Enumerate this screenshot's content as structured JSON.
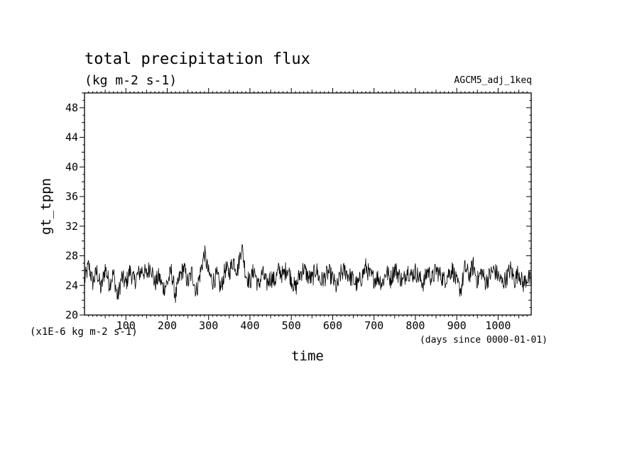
{
  "chart_data": {
    "type": "line",
    "title": "total precipitation flux",
    "units": "(kg m-2 s-1)",
    "experiment": "AGCM5_adj_1keq",
    "xlabel": "time",
    "x_units": "(days since 0000-01-01)",
    "ylabel": "gt_tppn",
    "y_units": "(x1E-6 kg m-2 s-1)",
    "xlim": [
      0,
      1080
    ],
    "ylim": [
      20,
      50
    ],
    "x_major_ticks": [
      100,
      200,
      300,
      400,
      500,
      600,
      700,
      800,
      900,
      1000
    ],
    "x_tick_labels": [
      "100",
      "200",
      "300",
      "400",
      "500",
      "600",
      "700",
      "800",
      "900",
      "1000"
    ],
    "y_major_ticks": [
      20,
      24,
      28,
      32,
      36,
      40,
      44,
      48
    ],
    "y_tick_labels": [
      "20",
      "24",
      "28",
      "32",
      "36",
      "40",
      "44",
      "48"
    ],
    "grid": false,
    "line_color": "#000000",
    "series": [
      {
        "x": [
          0,
          10,
          20,
          30,
          40,
          50,
          60,
          70,
          80,
          90,
          100,
          110,
          120,
          130,
          140,
          150,
          160,
          170,
          180,
          190,
          200,
          210,
          220,
          230,
          240,
          250,
          260,
          270,
          280,
          290,
          300,
          310,
          320,
          330,
          340,
          350,
          360,
          370,
          380,
          390,
          400,
          410,
          420,
          430,
          440,
          450,
          460,
          470,
          480,
          490,
          500,
          510,
          520,
          530,
          540,
          550,
          560,
          570,
          580,
          590,
          600,
          610,
          620,
          630,
          640,
          650,
          660,
          670,
          680,
          690,
          700,
          710,
          720,
          730,
          740,
          750,
          760,
          770,
          780,
          790,
          800,
          810,
          820,
          830,
          840,
          850,
          860,
          870,
          880,
          890,
          900,
          910,
          920,
          930,
          940,
          950,
          960,
          970,
          980,
          990,
          1000,
          1010,
          1020,
          1030,
          1040,
          1050,
          1060,
          1070,
          1080
        ],
        "values": [
          24.6,
          26.7,
          24.4,
          25.9,
          23.4,
          26.4,
          24.2,
          25.6,
          22.3,
          25.1,
          24.2,
          26.0,
          24.5,
          25.5,
          26.1,
          25.4,
          26.8,
          24.2,
          25.2,
          23.6,
          24.3,
          25.9,
          22.5,
          25.1,
          26.4,
          24.3,
          25.8,
          23.1,
          25.7,
          28.4,
          25.6,
          24.6,
          25.3,
          23.5,
          26.2,
          25.8,
          27.4,
          26.0,
          29.4,
          25.5,
          24.4,
          26.2,
          23.8,
          25.7,
          24.2,
          25.1,
          24.6,
          26.1,
          25.3,
          26.4,
          24.9,
          23.5,
          25.4,
          26.3,
          25.2,
          24.8,
          26.3,
          24.5,
          25.0,
          25.8,
          24.9,
          23.6,
          25.6,
          26.0,
          25.3,
          24.7,
          24.0,
          25.1,
          26.5,
          25.3,
          24.9,
          25.1,
          24.3,
          25.9,
          24.8,
          26.3,
          25.4,
          24.4,
          26.2,
          25.3,
          25.9,
          24.9,
          24.3,
          26.1,
          24.8,
          26.1,
          25.4,
          24.7,
          25.6,
          26.2,
          24.2,
          23.4,
          26.4,
          25.3,
          26.7,
          24.6,
          25.9,
          24.4,
          25.4,
          26.1,
          25.3,
          24.3,
          25.0,
          26.2,
          24.7,
          25.9,
          24.1,
          25.1,
          24.4
        ]
      }
    ]
  }
}
